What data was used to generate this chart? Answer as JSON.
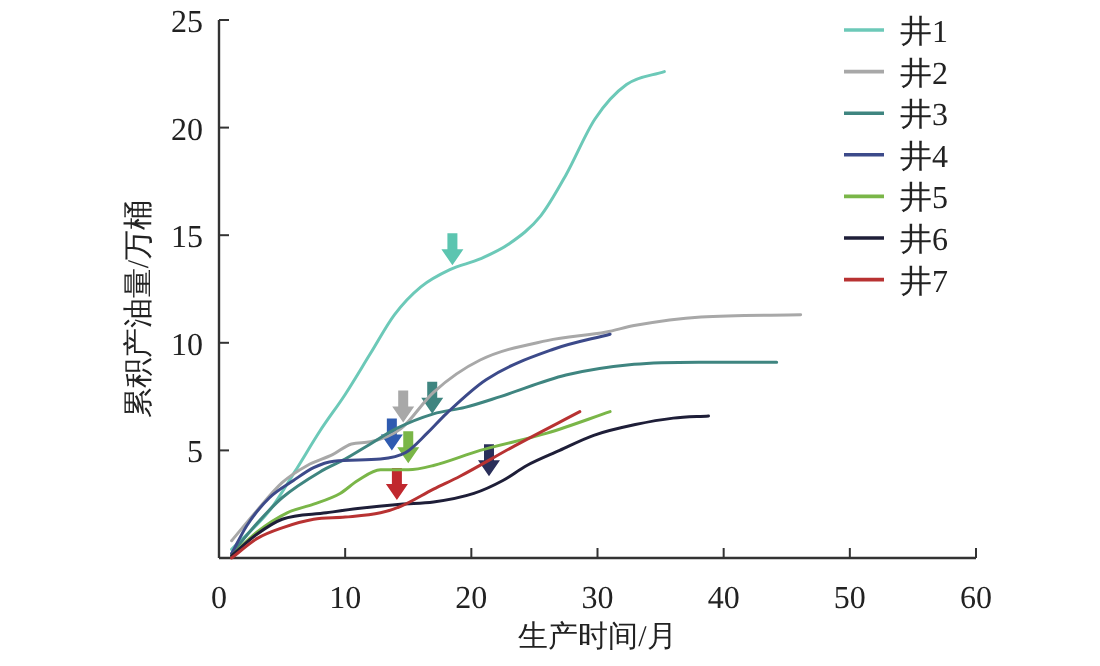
{
  "chart_data": {
    "type": "line",
    "xlabel": "生产时间/月",
    "ylabel": "累积产油量/万桶",
    "xlim": [
      0,
      60
    ],
    "ylim": [
      0,
      25
    ],
    "xticks": [
      0,
      10,
      20,
      30,
      40,
      50,
      60
    ],
    "yticks": [
      5,
      10,
      15,
      20,
      25
    ],
    "grid": false,
    "legend": "top right",
    "marker": "none",
    "line_style": "solid",
    "series": [
      {
        "name": "井1",
        "color": "#6cc9b8",
        "x": [
          1,
          4,
          6,
          8,
          10,
          12,
          13.9,
          16,
          18.3,
          20.7,
          23,
          25.5,
          27.5,
          29.8,
          32.3,
          35.3
        ],
        "values": [
          0.4,
          2.2,
          4,
          5.9,
          7.6,
          9.5,
          11.3,
          12.6,
          13.4,
          13.9,
          14.6,
          15.9,
          17.8,
          20.4,
          22,
          22.6
        ]
      },
      {
        "name": "井2",
        "color": "#a8a8a8",
        "x": [
          1,
          3,
          5,
          7,
          9,
          10.5,
          12,
          14.4,
          17,
          20.7,
          26,
          30.7,
          32.9,
          38.2,
          46.1
        ],
        "values": [
          0.8,
          2.2,
          3.5,
          4.3,
          4.8,
          5.3,
          5.4,
          6,
          7.7,
          9.2,
          10.1,
          10.5,
          10.8,
          11.2,
          11.3
        ]
      },
      {
        "name": "井3",
        "color": "#3f8580",
        "x": [
          1,
          3,
          5,
          8,
          10,
          12,
          14,
          17,
          19.5,
          22.3,
          27.5,
          32.9,
          38,
          44.2
        ],
        "values": [
          0.2,
          1.6,
          2.8,
          4,
          4.6,
          5.3,
          6,
          6.7,
          7,
          7.5,
          8.5,
          9,
          9.1,
          9.1
        ]
      },
      {
        "name": "井4",
        "color": "#3c4a8a",
        "x": [
          1,
          2.2,
          4,
          5.9,
          7.5,
          9.1,
          12.8,
          14.8,
          16.5,
          18,
          21.2,
          26.5,
          31
        ],
        "values": [
          0.2,
          1.5,
          2.8,
          3.6,
          4.2,
          4.5,
          4.6,
          4.9,
          5.8,
          6.7,
          8.3,
          9.7,
          10.4
        ]
      },
      {
        "name": "井5",
        "color": "#7ab648",
        "x": [
          1,
          3,
          5.4,
          7.5,
          9.6,
          11,
          12.8,
          15,
          17,
          20.7,
          26,
          31
        ],
        "values": [
          0.1,
          1.2,
          2.1,
          2.5,
          3,
          3.6,
          4.1,
          4.1,
          4.3,
          5,
          5.8,
          6.8
        ]
      },
      {
        "name": "井6",
        "color": "#1e1e38",
        "x": [
          1,
          3,
          5,
          8.5,
          11,
          14.4,
          17,
          20.2,
          22.5,
          24.4,
          27,
          29.7,
          33,
          36,
          38.8
        ],
        "values": [
          0.1,
          1.1,
          1.8,
          2.1,
          2.3,
          2.5,
          2.6,
          3,
          3.6,
          4.3,
          5,
          5.7,
          6.2,
          6.5,
          6.6
        ]
      },
      {
        "name": "井7",
        "color": "#b83232",
        "x": [
          1,
          3,
          5,
          7.5,
          10,
          12.8,
          14.4,
          17,
          19.1,
          23.4,
          28.6
        ],
        "values": [
          0,
          0.9,
          1.4,
          1.8,
          1.9,
          2.1,
          2.4,
          3.2,
          3.8,
          5.2,
          6.8
        ]
      }
    ]
  }
}
